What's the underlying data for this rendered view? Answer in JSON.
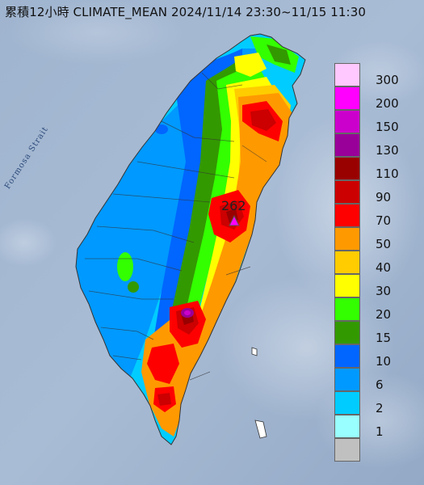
{
  "title": "累積12小時 CLIMATE_MEAN 2024/11/14 23:30~11/15 11:30",
  "strait_label": "Formosa Strait",
  "max_station": {
    "value_label": "262"
  },
  "legend": {
    "levels": [
      {
        "label": "300",
        "color": "#ffc8ff"
      },
      {
        "label": "200",
        "color": "#ff00ff"
      },
      {
        "label": "150",
        "color": "#cc00cc"
      },
      {
        "label": "130",
        "color": "#990099"
      },
      {
        "label": "110",
        "color": "#990000"
      },
      {
        "label": "90",
        "color": "#cc0000"
      },
      {
        "label": "70",
        "color": "#ff0000"
      },
      {
        "label": "50",
        "color": "#ff9900"
      },
      {
        "label": "40",
        "color": "#ffcc00"
      },
      {
        "label": "30",
        "color": "#ffff00"
      },
      {
        "label": "20",
        "color": "#33ff00"
      },
      {
        "label": "15",
        "color": "#339900"
      },
      {
        "label": "10",
        "color": "#0066ff"
      },
      {
        "label": "6",
        "color": "#0099ff"
      },
      {
        "label": "2",
        "color": "#00ccff"
      },
      {
        "label": "1",
        "color": "#99ffff"
      },
      {
        "label": "",
        "color": "#c0c0c0"
      }
    ]
  }
}
